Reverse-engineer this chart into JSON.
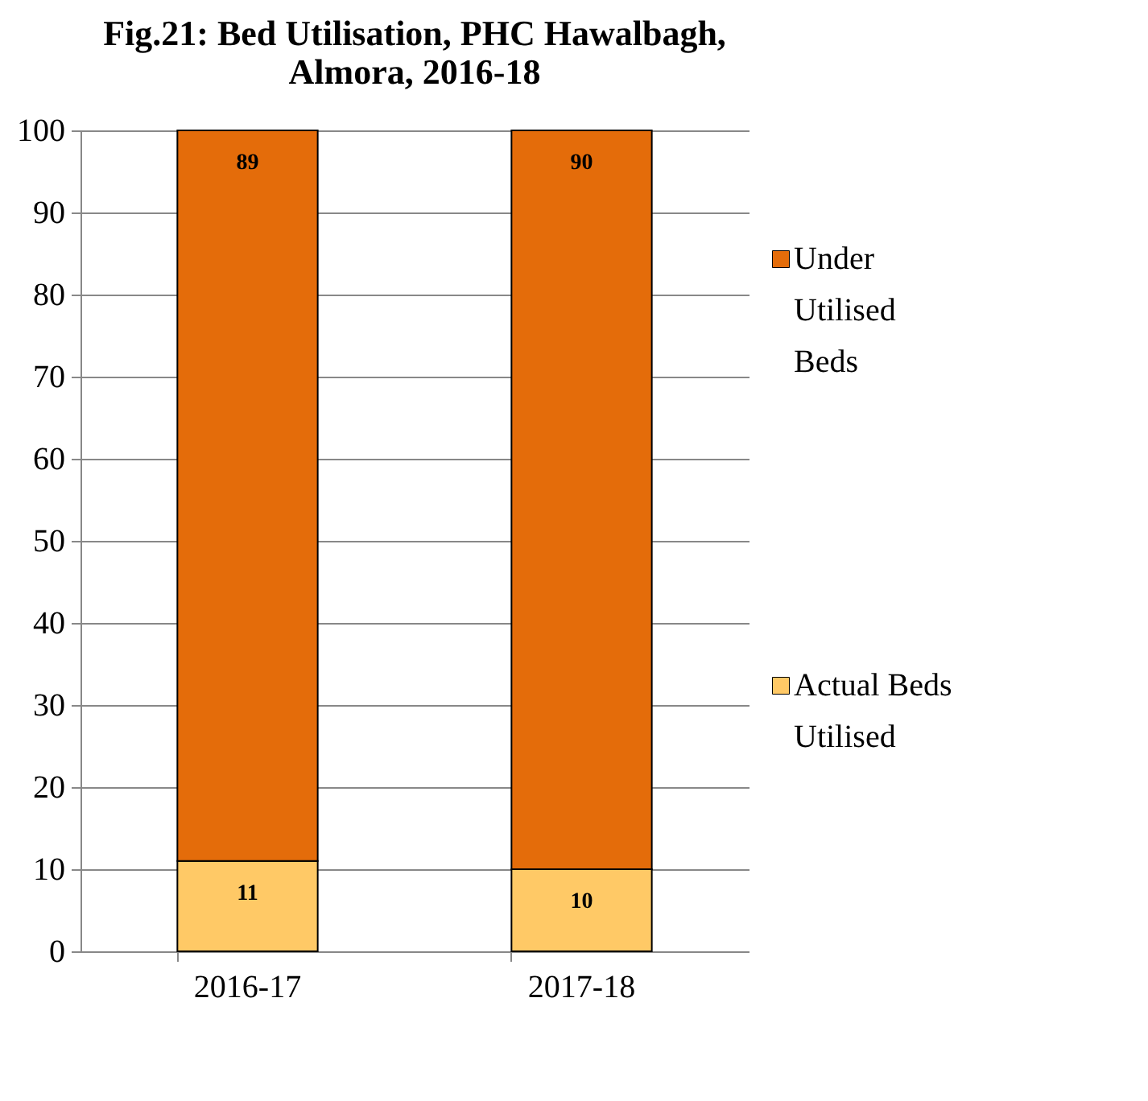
{
  "chart_data": {
    "type": "bar",
    "title": "Fig.21: Bed Utilisation, PHC Hawalbagh, Almora, 2016-18",
    "categories": [
      "2016-17",
      "2017-18"
    ],
    "series": [
      {
        "name": "Actual Beds Utilised",
        "color": "#ffc966",
        "values": [
          11,
          10
        ]
      },
      {
        "name": "Under Utilised Beds",
        "color": "#e46c0a",
        "values": [
          89,
          90
        ]
      }
    ],
    "stacked": true,
    "ylim": [
      0,
      100
    ],
    "yticks": [
      0,
      10,
      20,
      30,
      40,
      50,
      60,
      70,
      80,
      90,
      100
    ],
    "grid": "y",
    "legend": "right",
    "data_labels": true
  }
}
